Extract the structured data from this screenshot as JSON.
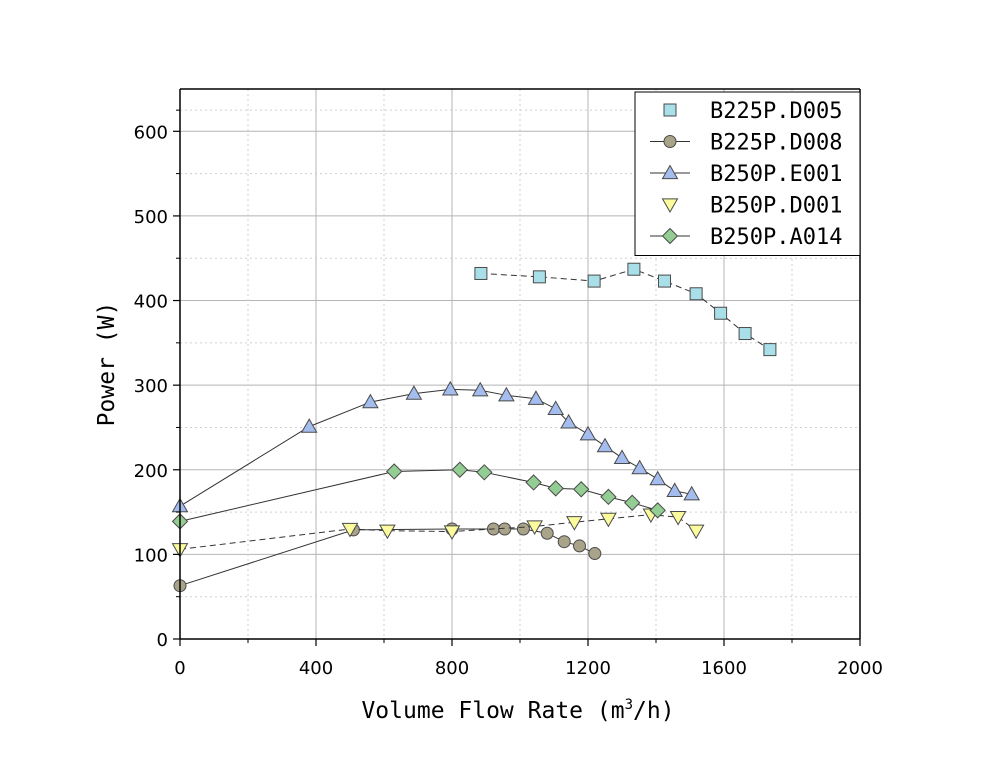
{
  "chart_data": {
    "type": "line",
    "title": "",
    "xlabel": "Volume Flow Rate (m³/h)",
    "xlabel_parts": {
      "base": "Volume Flow Rate (m",
      "sup": "3",
      "tail": "/h)"
    },
    "ylabel": "Power (W)",
    "xlim": [
      0,
      2000
    ],
    "ylim": [
      0,
      650
    ],
    "xticks": [
      0,
      400,
      800,
      1200,
      1600,
      2000
    ],
    "xtick_labels": [
      "0",
      "400",
      "800",
      "1200",
      "1600",
      "2000"
    ],
    "yticks": [
      0,
      100,
      200,
      300,
      400,
      500,
      600
    ],
    "ytick_labels": [
      "0",
      "100",
      "200",
      "300",
      "400",
      "500",
      "600"
    ],
    "grid": true,
    "legend_position": "top-right",
    "series": [
      {
        "name": "B225P.D005",
        "marker": "square",
        "color": "#a8dfe8",
        "dashed": true,
        "x": [
          885,
          1057,
          1218,
          1335,
          1425,
          1518,
          1590,
          1662,
          1735
        ],
        "y": [
          432,
          428,
          423,
          437,
          423,
          408,
          385,
          361,
          342
        ]
      },
      {
        "name": "B225P.D008",
        "marker": "circle",
        "color": "#a9a38a",
        "dashed": false,
        "x": [
          0,
          510,
          800,
          922,
          955,
          1010,
          1080,
          1130,
          1175,
          1220
        ],
        "y": [
          63,
          129,
          130,
          130,
          130,
          130,
          125,
          115,
          110,
          101
        ]
      },
      {
        "name": "B250P.E001",
        "marker": "triangle-up",
        "color": "#a4bcee",
        "dashed": false,
        "x": [
          0,
          380,
          560,
          688,
          795,
          883,
          960,
          1047,
          1105,
          1143,
          1200,
          1250,
          1300,
          1352,
          1405,
          1455,
          1505
        ],
        "y": [
          157,
          251,
          280,
          290,
          295,
          294,
          288,
          284,
          272,
          256,
          242,
          228,
          214,
          202,
          189,
          175,
          171
        ]
      },
      {
        "name": "B250P.D001",
        "marker": "triangle-down",
        "color": "#fbfb9e",
        "dashed": true,
        "x": [
          0,
          500,
          610,
          800,
          1043,
          1160,
          1260,
          1385,
          1465,
          1518
        ],
        "y": [
          106,
          130,
          128,
          127,
          133,
          138,
          142,
          147,
          144,
          128
        ]
      },
      {
        "name": "B250P.A014",
        "marker": "diamond",
        "color": "#93cd93",
        "dashed": false,
        "x": [
          0,
          630,
          823,
          895,
          1040,
          1105,
          1180,
          1260,
          1330,
          1405
        ],
        "y": [
          139,
          198,
          200,
          197,
          185,
          178,
          177,
          168,
          161,
          152
        ]
      }
    ]
  }
}
